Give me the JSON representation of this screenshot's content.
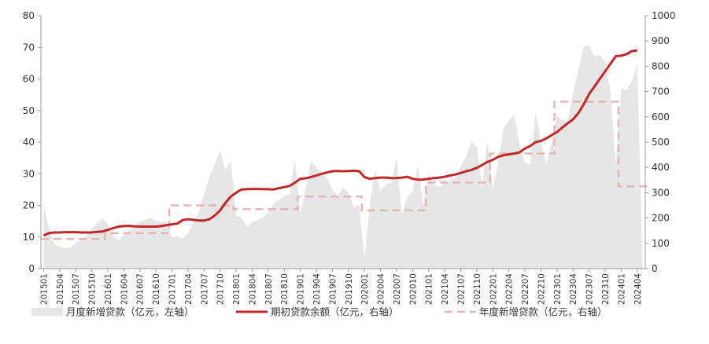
{
  "chart_data": {
    "type": "area+line",
    "title": "",
    "y_left": {
      "ylim": [
        0,
        80
      ],
      "ticks": [
        0,
        10,
        20,
        30,
        40,
        50,
        60,
        70,
        80
      ]
    },
    "y_right": {
      "ylim": [
        0,
        1000
      ],
      "ticks": [
        0,
        100,
        200,
        300,
        400,
        500,
        600,
        700,
        800,
        900,
        1000
      ]
    },
    "x_tick_labels": [
      "201501",
      "201504",
      "201507",
      "201510",
      "201601",
      "201604",
      "201607",
      "201610",
      "201701",
      "201704",
      "201707",
      "201710",
      "201801",
      "201804",
      "201807",
      "201810",
      "201901",
      "201904",
      "201907",
      "201910",
      "202001",
      "202004",
      "202007",
      "202010",
      "202101",
      "202104",
      "202107",
      "202110",
      "202201",
      "202204",
      "202207",
      "202210",
      "202301",
      "202304",
      "202307",
      "202310",
      "202401",
      "202404"
    ],
    "series": [
      {
        "name": "月度新增贷款（亿元，左轴）",
        "axis": "left",
        "kind": "area",
        "color": "#e6e6e6",
        "values": [
          20.3,
          12.5,
          7.8,
          7.0,
          6.5,
          6.5,
          8.3,
          9.0,
          10.3,
          12.7,
          14.6,
          15.8,
          14.0,
          10.5,
          9.0,
          10.7,
          12.1,
          13.3,
          14.9,
          15.4,
          16.0,
          15.0,
          14.7,
          14.7,
          10.0,
          10.2,
          9.5,
          11.3,
          14.3,
          18.0,
          23.5,
          29.0,
          33.0,
          37.5,
          31.0,
          34.3,
          16.6,
          16.3,
          13.3,
          14.8,
          15.4,
          16.2,
          17.9,
          20.4,
          21.8,
          22.9,
          23.6,
          34.8,
          17.2,
          25.3,
          34.1,
          32.0,
          30.0,
          28.8,
          25.1,
          22.8,
          25.7,
          24.1,
          19.5,
          20.2,
          3.0,
          20.5,
          31.0,
          24.4,
          26.5,
          27.3,
          35.0,
          17.3,
          22.6,
          24.4,
          32.4,
          20.1,
          30.0,
          26.5,
          25.8,
          26.9,
          27.8,
          28.7,
          32.3,
          35.5,
          40.3,
          38.5,
          25.6,
          40.4,
          25.3,
          33.7,
          44.3,
          46.9,
          48.8,
          39.1,
          33.6,
          33.0,
          49.6,
          40.2,
          33.0,
          40.0,
          48.5,
          46.7,
          46.8,
          55.8,
          62.7,
          70.4,
          70.5,
          67.0,
          67.5,
          65.5,
          56.0,
          33.0,
          57.0,
          56.5,
          59.3,
          65.0,
          0.4
        ]
      },
      {
        "name": "期初贷款余额（亿元，右轴）",
        "axis": "right",
        "kind": "line",
        "color": "#c0282a",
        "values": [
          131,
          140,
          143,
          143,
          144,
          144,
          144,
          143,
          143,
          143,
          145,
          147,
          153,
          160,
          166,
          168,
          169,
          167,
          166,
          166,
          166,
          166,
          168,
          172,
          175,
          178,
          192,
          195,
          193,
          190,
          190,
          195,
          210,
          230,
          260,
          285,
          300,
          313,
          314,
          315,
          315,
          314,
          314,
          313,
          318,
          322,
          327,
          340,
          355,
          357,
          362,
          368,
          375,
          380,
          385,
          386,
          385,
          386,
          387,
          385,
          362,
          355,
          358,
          360,
          360,
          358,
          358,
          360,
          363,
          355,
          352,
          352,
          355,
          358,
          360,
          363,
          368,
          372,
          378,
          385,
          390,
          398,
          410,
          422,
          430,
          442,
          448,
          452,
          455,
          460,
          475,
          485,
          500,
          505,
          515,
          528,
          540,
          558,
          575,
          590,
          615,
          650,
          690,
          720,
          750,
          780,
          810,
          840,
          842,
          848,
          860,
          863
        ]
      },
      {
        "name": "年度新增贷款（亿元，右轴）",
        "axis": "right",
        "kind": "step",
        "color": "#e8b4b5",
        "dash": "10,6",
        "values": [
          117,
          117,
          117,
          117,
          117,
          117,
          117,
          117,
          117,
          117,
          117,
          117,
          140,
          140,
          140,
          140,
          140,
          140,
          140,
          140,
          140,
          140,
          140,
          140,
          250,
          250,
          250,
          250,
          250,
          250,
          250,
          250,
          250,
          250,
          250,
          250,
          235,
          235,
          235,
          235,
          235,
          235,
          235,
          235,
          235,
          235,
          235,
          235,
          285,
          285,
          285,
          285,
          285,
          285,
          285,
          285,
          285,
          285,
          285,
          285,
          230,
          230,
          230,
          230,
          230,
          230,
          230,
          230,
          230,
          230,
          230,
          230,
          340,
          340,
          340,
          340,
          340,
          340,
          340,
          340,
          340,
          340,
          340,
          340,
          455,
          455,
          455,
          455,
          455,
          455,
          455,
          455,
          455,
          455,
          455,
          455,
          660,
          660,
          660,
          660,
          660,
          660,
          660,
          660,
          660,
          660,
          660,
          660,
          325,
          325,
          325,
          325,
          325,
          325
        ]
      }
    ],
    "legend": {
      "placement": "bottom",
      "items": [
        {
          "label": "月度新增贷款（亿元，左轴）",
          "swatch": "area",
          "color": "#e6e6e6"
        },
        {
          "label": "期初贷款余额（亿元，右轴）",
          "swatch": "line",
          "color": "#c0282a"
        },
        {
          "label": "年度新增贷款（亿元，右轴）",
          "swatch": "dashed",
          "color": "#e8b4b5"
        }
      ]
    },
    "grid": false
  }
}
